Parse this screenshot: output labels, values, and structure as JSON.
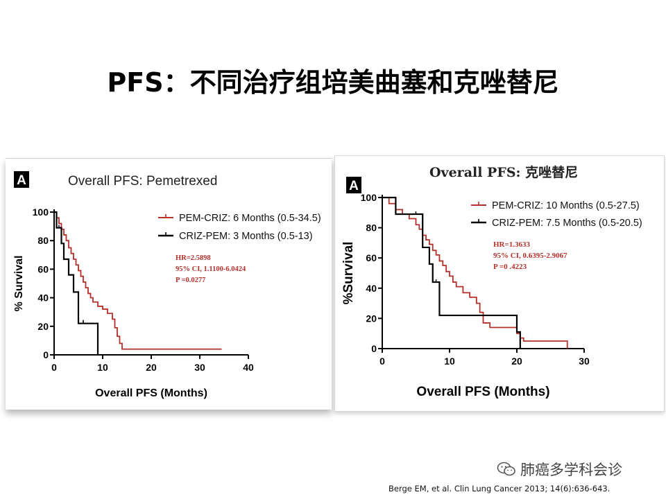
{
  "slide": {
    "title": "PFS：不同治疗组培美曲塞和克唑替尼",
    "watermark": "肺癌多学科会诊",
    "watermark_icon": "wechat-icon",
    "citation": "Berge EM, et al. Clin Lung Cancer 2013; 14(6):636-643."
  },
  "colors": {
    "red": "#b5302a",
    "black": "#000000",
    "stats_red": "#b5302a"
  },
  "chart_data": [
    {
      "type": "line",
      "step": true,
      "panel_letter": "A",
      "title": "Overall PFS: Pemetrexed",
      "xlabel": "Overall PFS (Months)",
      "ylabel": "% Survival",
      "xlim": [
        0,
        40
      ],
      "ylim": [
        0,
        100
      ],
      "xticks": [
        0,
        10,
        20,
        30,
        40
      ],
      "yticks": [
        0,
        20,
        40,
        60,
        80,
        100
      ],
      "grid": false,
      "legend_position": "top-right",
      "stats": [
        "HR=2.5898",
        "95% CI, 1.1100-6.0424",
        "P =0.0277"
      ],
      "series": [
        {
          "name": "PEM-CRIZ: 6 Months (0.5-34.5)",
          "color": "red",
          "x": [
            0,
            0.5,
            1,
            1.5,
            2,
            2.5,
            3,
            3.5,
            4,
            4.5,
            5,
            5.5,
            6,
            6.5,
            7,
            7.5,
            8,
            9,
            10,
            11,
            12,
            12.5,
            13,
            13.5,
            14,
            34.5
          ],
          "y": [
            100,
            96,
            92,
            88,
            84,
            80,
            75,
            71,
            67,
            63,
            59,
            55,
            51,
            47,
            43,
            40,
            37,
            34,
            32,
            29,
            25,
            19,
            13,
            8,
            4,
            4
          ]
        },
        {
          "name": "CRIZ-PEM: 3 Months (0.5-13)",
          "color": "black",
          "x": [
            0,
            0.5,
            1,
            1.5,
            2,
            3,
            4,
            5,
            9
          ],
          "y": [
            100,
            89,
            89,
            78,
            67,
            56,
            44,
            22,
            0
          ],
          "censored": [
            {
              "x": 6,
              "y": 22
            }
          ]
        }
      ]
    },
    {
      "type": "line",
      "step": true,
      "panel_letter": "A",
      "title": "Overall PFS: 克唑替尼",
      "xlabel": "Overall PFS (Months)",
      "ylabel": "%Survival",
      "xlim": [
        0,
        30
      ],
      "ylim": [
        0,
        100
      ],
      "xticks": [
        0,
        10,
        20,
        30
      ],
      "yticks": [
        0,
        20,
        40,
        60,
        80,
        100
      ],
      "grid": false,
      "legend_position": "top-right",
      "stats": [
        "HR=1.3633",
        "95% CI, 0.6395-2.9067",
        "P =0 .4223"
      ],
      "series": [
        {
          "name": "PEM-CRIZ: 10 Months (0.5-27.5)",
          "color": "red",
          "x": [
            0,
            1,
            2,
            3,
            4,
            5,
            5.5,
            6,
            6.5,
            7,
            7.5,
            8,
            8.5,
            9,
            9.5,
            10,
            10.5,
            11,
            12,
            13,
            14,
            14.5,
            15,
            16,
            20,
            20.5,
            21,
            27.5
          ],
          "y": [
            100,
            96,
            92,
            89,
            86,
            82,
            79,
            75,
            72,
            69,
            65,
            62,
            58,
            55,
            51,
            48,
            44,
            41,
            37,
            34,
            30,
            24,
            17,
            14,
            10,
            7,
            5,
            0
          ]
        },
        {
          "name": "CRIZ-PEM: 7.5 Months (0.5-20.5)",
          "color": "black",
          "x": [
            0,
            2,
            5,
            6,
            7,
            7.5,
            8,
            8.5,
            20,
            20.5
          ],
          "y": [
            100,
            89,
            89,
            67,
            56,
            44,
            44,
            22,
            11,
            0
          ]
        }
      ]
    }
  ]
}
